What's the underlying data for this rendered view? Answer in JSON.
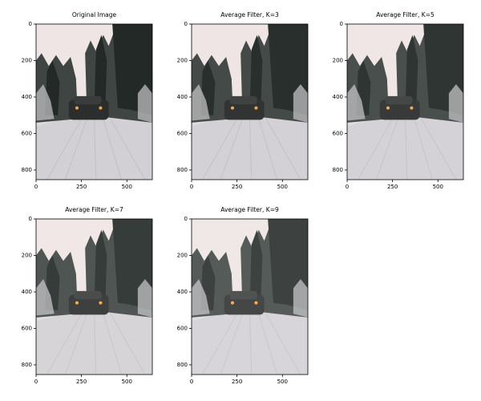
{
  "chart_data": [
    {
      "type": "image",
      "title": "Original Image",
      "xlim": [
        0,
        640
      ],
      "ylim": [
        853,
        0
      ],
      "xticks": [
        0,
        250,
        500
      ],
      "yticks": [
        0,
        200,
        400,
        600,
        800
      ]
    },
    {
      "type": "image",
      "title": "Average Filter, K=3",
      "xlim": [
        0,
        640
      ],
      "ylim": [
        853,
        0
      ],
      "xticks": [
        0,
        250,
        500
      ],
      "yticks": [
        0,
        200,
        400,
        600,
        800
      ]
    },
    {
      "type": "image",
      "title": "Average Filter, K=5",
      "xlim": [
        0,
        640
      ],
      "ylim": [
        853,
        0
      ],
      "xticks": [
        0,
        250,
        500
      ],
      "yticks": [
        0,
        200,
        400,
        600,
        800
      ]
    },
    {
      "type": "image",
      "title": "Average Filter, K=7",
      "xlim": [
        0,
        640
      ],
      "ylim": [
        853,
        0
      ],
      "xticks": [
        0,
        250,
        500
      ],
      "yticks": [
        0,
        200,
        400,
        600,
        800
      ]
    },
    {
      "type": "image",
      "title": "Average Filter, K=9",
      "xlim": [
        0,
        640
      ],
      "ylim": [
        853,
        0
      ],
      "xticks": [
        0,
        250,
        500
      ],
      "yticks": [
        0,
        200,
        400,
        600,
        800
      ]
    }
  ]
}
